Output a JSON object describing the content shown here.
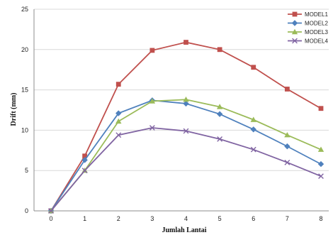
{
  "chart_data": {
    "type": "line",
    "xlabel": "Jumlah Lantai",
    "ylabel": "Drift (mm)",
    "x": [
      0,
      1,
      2,
      3,
      4,
      5,
      6,
      7,
      8
    ],
    "xlim": [
      0,
      8
    ],
    "ylim": [
      0,
      25
    ],
    "yticks": [
      0,
      5,
      10,
      15,
      20,
      25
    ],
    "grid": true,
    "legend_position": "top-right",
    "series": [
      {
        "name": "MODEL1",
        "color": "#c0504d",
        "marker": "square",
        "values": [
          0,
          6.8,
          15.7,
          19.9,
          20.9,
          20.0,
          17.8,
          15.1,
          12.7
        ]
      },
      {
        "name": "MODEL2",
        "color": "#4f81bd",
        "marker": "diamond",
        "values": [
          0,
          6.3,
          12.1,
          13.7,
          13.3,
          12.0,
          10.1,
          8.0,
          5.8
        ]
      },
      {
        "name": "MODEL3",
        "color": "#9bbb59",
        "marker": "triangle",
        "values": [
          0,
          5.0,
          11.1,
          13.6,
          13.8,
          12.9,
          11.3,
          9.4,
          7.6
        ]
      },
      {
        "name": "MODEL4",
        "color": "#8064a2",
        "marker": "x",
        "values": [
          0,
          5.0,
          9.4,
          10.3,
          9.9,
          8.9,
          7.6,
          6.0,
          4.3
        ]
      }
    ]
  }
}
